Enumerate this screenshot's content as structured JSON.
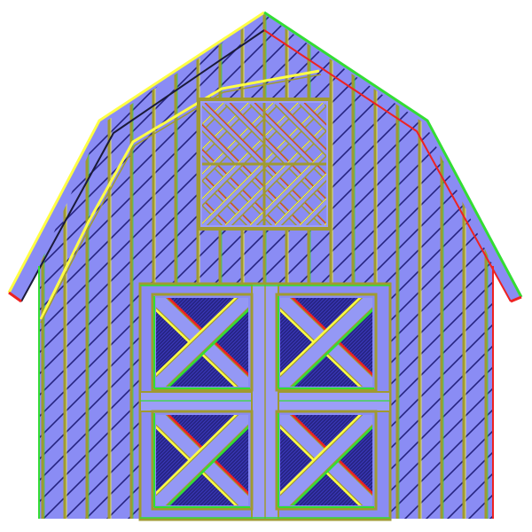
{
  "scene": {
    "subject": "barn-illustration",
    "palette": {
      "background": "#ffffff",
      "wall": "#8a8cf4",
      "wall_light": "#9c9ef8",
      "wall_dark": "#6f71e0",
      "panel_dark": "#3a38b8",
      "stripe_dark": "#252380",
      "trim": "#9498f5",
      "edge_yellow": "#ffff44",
      "edge_green": "#33dd33",
      "edge_red": "#ee2222",
      "edge_olive": "#a09a30",
      "edge_black": "#1a1a3a"
    },
    "parts": [
      "roof",
      "siding",
      "loft-window",
      "barn-door-upper-left",
      "barn-door-upper-right",
      "barn-door-lower-left",
      "barn-door-lower-right"
    ]
  }
}
